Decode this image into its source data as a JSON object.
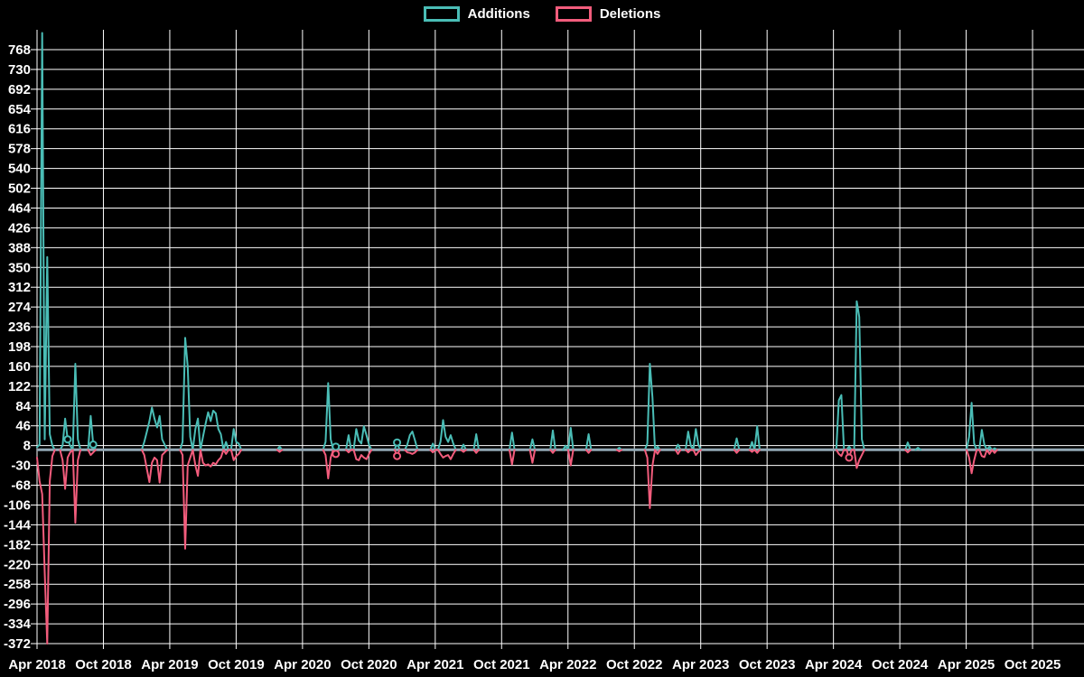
{
  "page": {
    "background": "#000000",
    "grid_color": "#ffffff",
    "text_color": "#ffffff"
  },
  "legend": {
    "items": [
      {
        "label": "Additions",
        "color": "#4abdb6"
      },
      {
        "label": "Deletions",
        "color": "#f25c7c"
      }
    ]
  },
  "chart_data": {
    "type": "line",
    "title": "",
    "xlabel": "",
    "ylabel": "",
    "legend_position": "top-center",
    "grid": true,
    "baseline_color": "#92a8b4",
    "x_axis": {
      "tick_labels": [
        "Apr 2018",
        "Oct 2018",
        "Apr 2019",
        "Oct 2019",
        "Apr 2020",
        "Oct 2020",
        "Apr 2021",
        "Oct 2021",
        "Apr 2022",
        "Oct 2022",
        "Apr 2023",
        "Oct 2023",
        "Apr 2024",
        "Oct 2024",
        "Apr 2025",
        "Oct 2025"
      ],
      "weeks_per_tick": 26,
      "total_weeks": 410
    },
    "y_axis": {
      "tick_labels": [
        "768",
        "730",
        "692",
        "654",
        "616",
        "578",
        "540",
        "502",
        "464",
        "426",
        "388",
        "350",
        "312",
        "274",
        "236",
        "198",
        "160",
        "122",
        "84",
        "46",
        "8",
        "-30",
        "-68",
        "-106",
        "-144",
        "-182",
        "-220",
        "-258",
        "-296",
        "-334",
        "-372"
      ],
      "min": -372,
      "max": 768,
      "step": 38
    },
    "series": [
      {
        "name": "Additions",
        "color": "#4abdb6",
        "sparse_points": [
          [
            0,
            5
          ],
          [
            1,
            10
          ],
          [
            2,
            800
          ],
          [
            3,
            20
          ],
          [
            4,
            370
          ],
          [
            5,
            30
          ],
          [
            6,
            8
          ],
          [
            10,
            8
          ],
          [
            11,
            60
          ],
          [
            12,
            20
          ],
          [
            13,
            8
          ],
          [
            15,
            165
          ],
          [
            16,
            20
          ],
          [
            21,
            65
          ],
          [
            22,
            10
          ],
          [
            42,
            15
          ],
          [
            43,
            35
          ],
          [
            44,
            55
          ],
          [
            45,
            81
          ],
          [
            46,
            60
          ],
          [
            47,
            43
          ],
          [
            48,
            65
          ],
          [
            49,
            20
          ],
          [
            50,
            10
          ],
          [
            57,
            15
          ],
          [
            58,
            215
          ],
          [
            59,
            160
          ],
          [
            60,
            25
          ],
          [
            62,
            40
          ],
          [
            63,
            60
          ],
          [
            65,
            25
          ],
          [
            66,
            50
          ],
          [
            67,
            72
          ],
          [
            68,
            55
          ],
          [
            69,
            75
          ],
          [
            70,
            70
          ],
          [
            71,
            40
          ],
          [
            72,
            30
          ],
          [
            74,
            15
          ],
          [
            77,
            40
          ],
          [
            78,
            15
          ],
          [
            79,
            12
          ],
          [
            95,
            6
          ],
          [
            113,
            15
          ],
          [
            114,
            128
          ],
          [
            115,
            20
          ],
          [
            117,
            6
          ],
          [
            122,
            28
          ],
          [
            125,
            40
          ],
          [
            126,
            18
          ],
          [
            127,
            12
          ],
          [
            128,
            45
          ],
          [
            129,
            28
          ],
          [
            130,
            10
          ],
          [
            141,
            14
          ],
          [
            145,
            10
          ],
          [
            146,
            28
          ],
          [
            147,
            35
          ],
          [
            148,
            18
          ],
          [
            155,
            12
          ],
          [
            158,
            15
          ],
          [
            159,
            57
          ],
          [
            160,
            25
          ],
          [
            161,
            15
          ],
          [
            162,
            28
          ],
          [
            163,
            12
          ],
          [
            167,
            10
          ],
          [
            172,
            30
          ],
          [
            186,
            33
          ],
          [
            194,
            20
          ],
          [
            202,
            37
          ],
          [
            207,
            8
          ],
          [
            209,
            42
          ],
          [
            216,
            30
          ],
          [
            228,
            4
          ],
          [
            239,
            12
          ],
          [
            240,
            165
          ],
          [
            241,
            100
          ],
          [
            243,
            6
          ],
          [
            251,
            10
          ],
          [
            255,
            35
          ],
          [
            256,
            8
          ],
          [
            258,
            40
          ],
          [
            259,
            10
          ],
          [
            274,
            22
          ],
          [
            280,
            15
          ],
          [
            282,
            45
          ],
          [
            314,
            95
          ],
          [
            315,
            105
          ],
          [
            318,
            6
          ],
          [
            321,
            285
          ],
          [
            322,
            255
          ],
          [
            323,
            20
          ],
          [
            341,
            14
          ],
          [
            345,
            4
          ],
          [
            365,
            25
          ],
          [
            366,
            90
          ],
          [
            367,
            12
          ],
          [
            370,
            38
          ],
          [
            371,
            10
          ],
          [
            373,
            6
          ],
          [
            375,
            3
          ]
        ]
      },
      {
        "name": "Deletions",
        "color": "#f25c7c",
        "sparse_points": [
          [
            0,
            -15
          ],
          [
            1,
            -60
          ],
          [
            2,
            -85
          ],
          [
            3,
            -235
          ],
          [
            4,
            -372
          ],
          [
            5,
            -60
          ],
          [
            6,
            -12
          ],
          [
            10,
            -20
          ],
          [
            11,
            -75
          ],
          [
            12,
            -15
          ],
          [
            13,
            -5
          ],
          [
            15,
            -140
          ],
          [
            16,
            -20
          ],
          [
            21,
            -10
          ],
          [
            22,
            -5
          ],
          [
            42,
            -10
          ],
          [
            43,
            -37
          ],
          [
            44,
            -62
          ],
          [
            45,
            -25
          ],
          [
            46,
            -15
          ],
          [
            47,
            -20
          ],
          [
            48,
            -63
          ],
          [
            49,
            -10
          ],
          [
            50,
            -5
          ],
          [
            57,
            -10
          ],
          [
            58,
            -190
          ],
          [
            59,
            -30
          ],
          [
            60,
            -15
          ],
          [
            62,
            -30
          ],
          [
            63,
            -50
          ],
          [
            65,
            -25
          ],
          [
            66,
            -30
          ],
          [
            67,
            -28
          ],
          [
            68,
            -32
          ],
          [
            69,
            -25
          ],
          [
            70,
            -28
          ],
          [
            71,
            -20
          ],
          [
            72,
            -15
          ],
          [
            74,
            -8
          ],
          [
            77,
            -20
          ],
          [
            78,
            -12
          ],
          [
            79,
            -8
          ],
          [
            95,
            -4
          ],
          [
            113,
            -10
          ],
          [
            114,
            -55
          ],
          [
            115,
            -15
          ],
          [
            117,
            -8
          ],
          [
            122,
            -5
          ],
          [
            125,
            -18
          ],
          [
            126,
            -20
          ],
          [
            127,
            -10
          ],
          [
            128,
            -15
          ],
          [
            129,
            -18
          ],
          [
            130,
            -8
          ],
          [
            141,
            -12
          ],
          [
            145,
            -5
          ],
          [
            146,
            -6
          ],
          [
            147,
            -8
          ],
          [
            148,
            -5
          ],
          [
            155,
            -5
          ],
          [
            158,
            -8
          ],
          [
            159,
            -15
          ],
          [
            160,
            -12
          ],
          [
            161,
            -10
          ],
          [
            162,
            -18
          ],
          [
            163,
            -8
          ],
          [
            167,
            -4
          ],
          [
            172,
            -6
          ],
          [
            186,
            -28
          ],
          [
            194,
            -25
          ],
          [
            202,
            -6
          ],
          [
            209,
            -30
          ],
          [
            216,
            -6
          ],
          [
            228,
            -3
          ],
          [
            239,
            -15
          ],
          [
            240,
            -112
          ],
          [
            241,
            -30
          ],
          [
            243,
            -8
          ],
          [
            251,
            -8
          ],
          [
            255,
            -5
          ],
          [
            258,
            -10
          ],
          [
            259,
            -4
          ],
          [
            274,
            -6
          ],
          [
            280,
            -4
          ],
          [
            282,
            -6
          ],
          [
            314,
            -8
          ],
          [
            315,
            -12
          ],
          [
            318,
            -15
          ],
          [
            321,
            -35
          ],
          [
            322,
            -20
          ],
          [
            323,
            -10
          ],
          [
            341,
            -5
          ],
          [
            365,
            -15
          ],
          [
            366,
            -45
          ],
          [
            367,
            -20
          ],
          [
            370,
            -12
          ],
          [
            371,
            -14
          ],
          [
            373,
            -8
          ],
          [
            375,
            -6
          ]
        ]
      }
    ],
    "point_markers": [
      {
        "series": 0,
        "week": 12
      },
      {
        "series": 0,
        "week": 22
      },
      {
        "series": 0,
        "week": 117
      },
      {
        "series": 1,
        "week": 117
      },
      {
        "series": 1,
        "week": 141
      },
      {
        "series": 0,
        "week": 141
      },
      {
        "series": 1,
        "week": 318
      }
    ]
  }
}
